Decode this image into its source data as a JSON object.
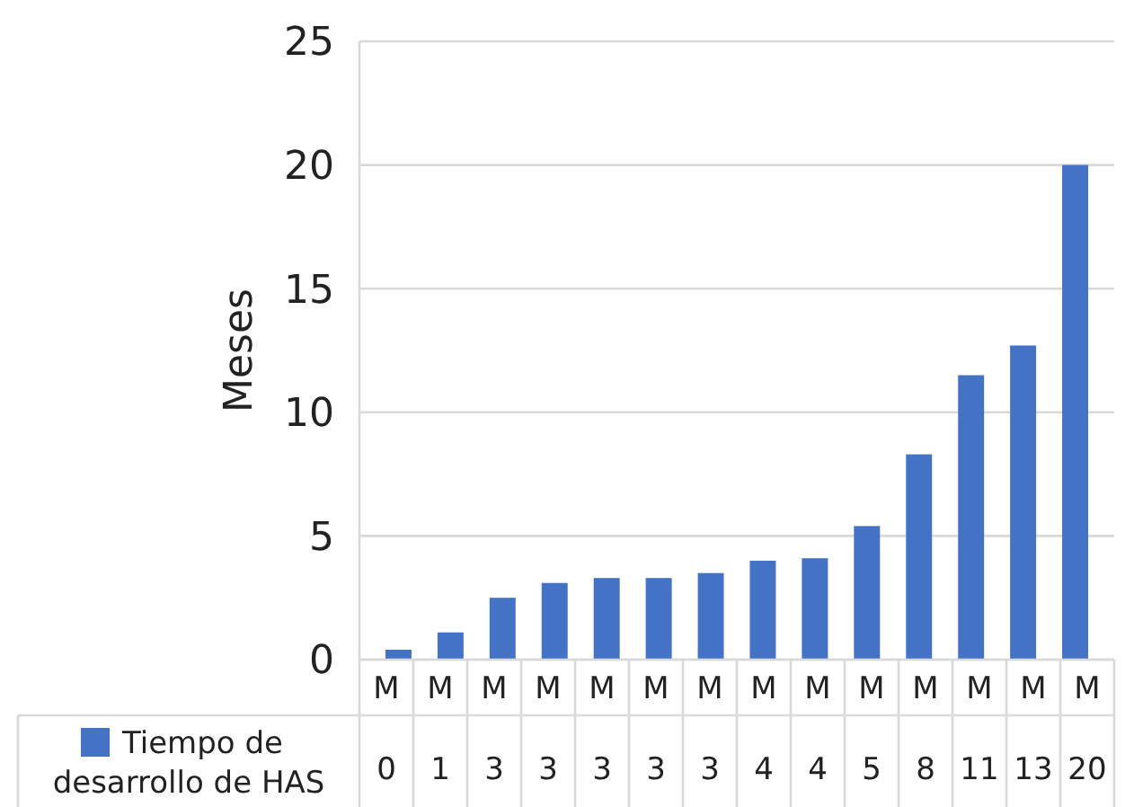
{
  "chart_data": {
    "type": "bar",
    "ylabel": "Meses",
    "categories": [
      "M",
      "M",
      "M",
      "M",
      "M",
      "M",
      "M",
      "M",
      "M",
      "M",
      "M",
      "M",
      "M",
      "M"
    ],
    "series": [
      {
        "name": "Tiempo de desarrollo de HAS",
        "color": "#4472c4",
        "values": [
          0.4,
          1.1,
          2.5,
          3.1,
          3.3,
          3.3,
          3.5,
          4.0,
          4.1,
          5.4,
          8.3,
          11.5,
          12.7,
          20.0
        ],
        "value_labels": [
          "0",
          "1",
          "3",
          "3",
          "3",
          "3",
          "3",
          "4",
          "4",
          "5",
          "8",
          "11",
          "13",
          "20"
        ]
      }
    ],
    "ylim": [
      0,
      25
    ],
    "yticks": [
      0,
      5,
      10,
      15,
      20,
      25
    ],
    "grid": "y",
    "legend": "bottom left"
  }
}
